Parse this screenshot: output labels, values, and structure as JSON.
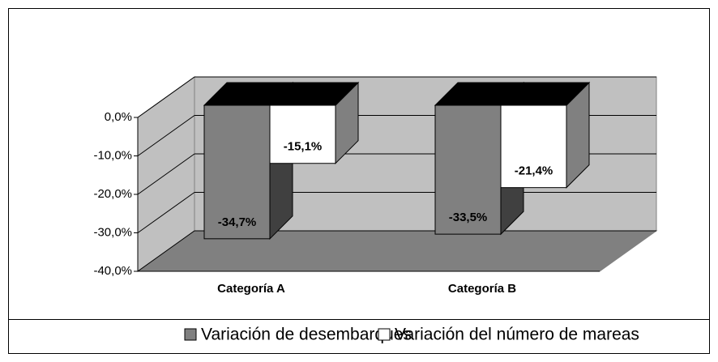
{
  "chart_data": {
    "type": "bar3d",
    "categories": [
      "Categoría A",
      "Categoría B"
    ],
    "series": [
      {
        "name": "Variación de desembarques",
        "color": "#808080",
        "values": [
          -34.7,
          -33.5
        ],
        "value_labels": [
          "-34,7%",
          "-33,5%"
        ]
      },
      {
        "name": "Variación del número de mareas",
        "color": "#ffffff",
        "values": [
          -15.1,
          -21.4
        ],
        "value_labels": [
          "-15,1%",
          "-21,4%"
        ]
      }
    ],
    "ylim": [
      -40,
      0
    ],
    "yticks": [
      {
        "value": 0,
        "label": "0,0%"
      },
      {
        "value": -10,
        "label": "-10,0%"
      },
      {
        "value": -20,
        "label": "-20,0%"
      },
      {
        "value": -30,
        "label": "-30,0%"
      },
      {
        "value": -40,
        "label": "-40,0%"
      }
    ],
    "grid": true,
    "legend": "bottom"
  }
}
